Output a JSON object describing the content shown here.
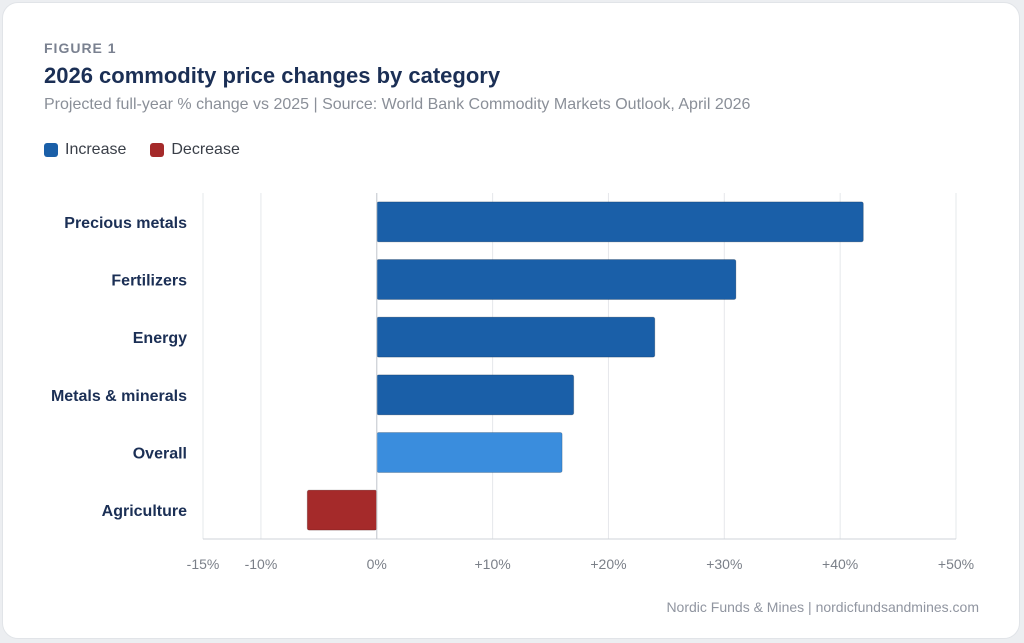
{
  "figure_label": "FIGURE 1",
  "footer": "Nordic Funds & Mines  |  nordicfundsandmines.com",
  "legend": [
    {
      "label": "Increase",
      "color": "#1a5fa8"
    },
    {
      "label": "Decrease",
      "color": "#a52a2a"
    }
  ],
  "colors": {
    "increase": "#1a5fa8",
    "decrease": "#a52a2a",
    "overall": "#3a8ddd",
    "category_text": "#1b2f55",
    "tick_text": "#7a7f88",
    "grid": "#e6e8eb"
  },
  "chart_data": {
    "type": "bar",
    "orientation": "horizontal",
    "title": "2026 commodity price changes by category",
    "subtitle": "Projected full-year % change vs 2025  |  Source: World Bank Commodity Markets Outlook, April 2026",
    "categories": [
      "Precious metals",
      "Fertilizers",
      "Energy",
      "Metals & minerals",
      "Overall",
      "Agriculture"
    ],
    "values": [
      42,
      31,
      24,
      17,
      16,
      -6
    ],
    "xlim": [
      -15,
      50
    ],
    "xticks": [
      -15,
      -10,
      0,
      10,
      20,
      30,
      40,
      50
    ],
    "xtick_labels": [
      "-15%",
      "-10%",
      "0%",
      "+10%",
      "+20%",
      "+30%",
      "+40%",
      "+50%"
    ],
    "grid": true,
    "legend_position": "top-left"
  }
}
